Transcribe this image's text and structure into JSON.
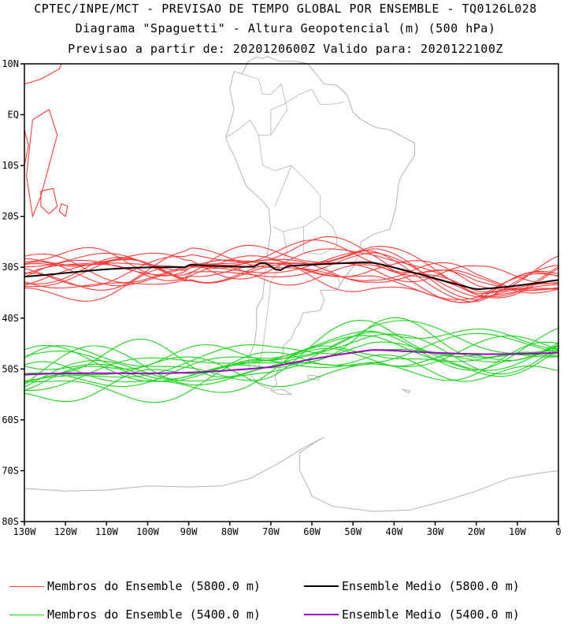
{
  "header": {
    "line1": "CPTEC/INPE/MCT - PREVISAO DE TEMPO GLOBAL POR ENSEMBLE - TQ0126L028",
    "line2": "Diagrama \"Spaguetti\" - Altura Geopotencial (m) (500 hPa)",
    "line3": "Previsao a partir de: 2020120600Z  Valido para: 2020122100Z"
  },
  "map": {
    "lat_labels": [
      "10N",
      "EQ",
      "10S",
      "20S",
      "30S",
      "40S",
      "50S",
      "60S",
      "70S",
      "80S"
    ],
    "lon_labels": [
      "130W",
      "120W",
      "110W",
      "100W",
      "90W",
      "80W",
      "70W",
      "60W",
      "50W",
      "40W",
      "30W",
      "20W",
      "10W",
      "0"
    ],
    "lat_range": [
      -80,
      10
    ],
    "lon_range": [
      -130,
      0
    ],
    "coastline_color": "#b4b4b4"
  },
  "colors": {
    "member_5800": "#ff3b3b",
    "mean_5800": "#000000",
    "member_5400": "#1ed31e",
    "mean_5400": "#a000c8"
  },
  "legend": {
    "members_5800": "Membros do Ensemble (5800.0 m)",
    "mean_5800": "Ensemble Medio (5800.0 m)",
    "members_5400": "Membros do Ensemble (5400.0 m)",
    "mean_5400": "Ensemble Medio (5400.0 m)"
  }
}
